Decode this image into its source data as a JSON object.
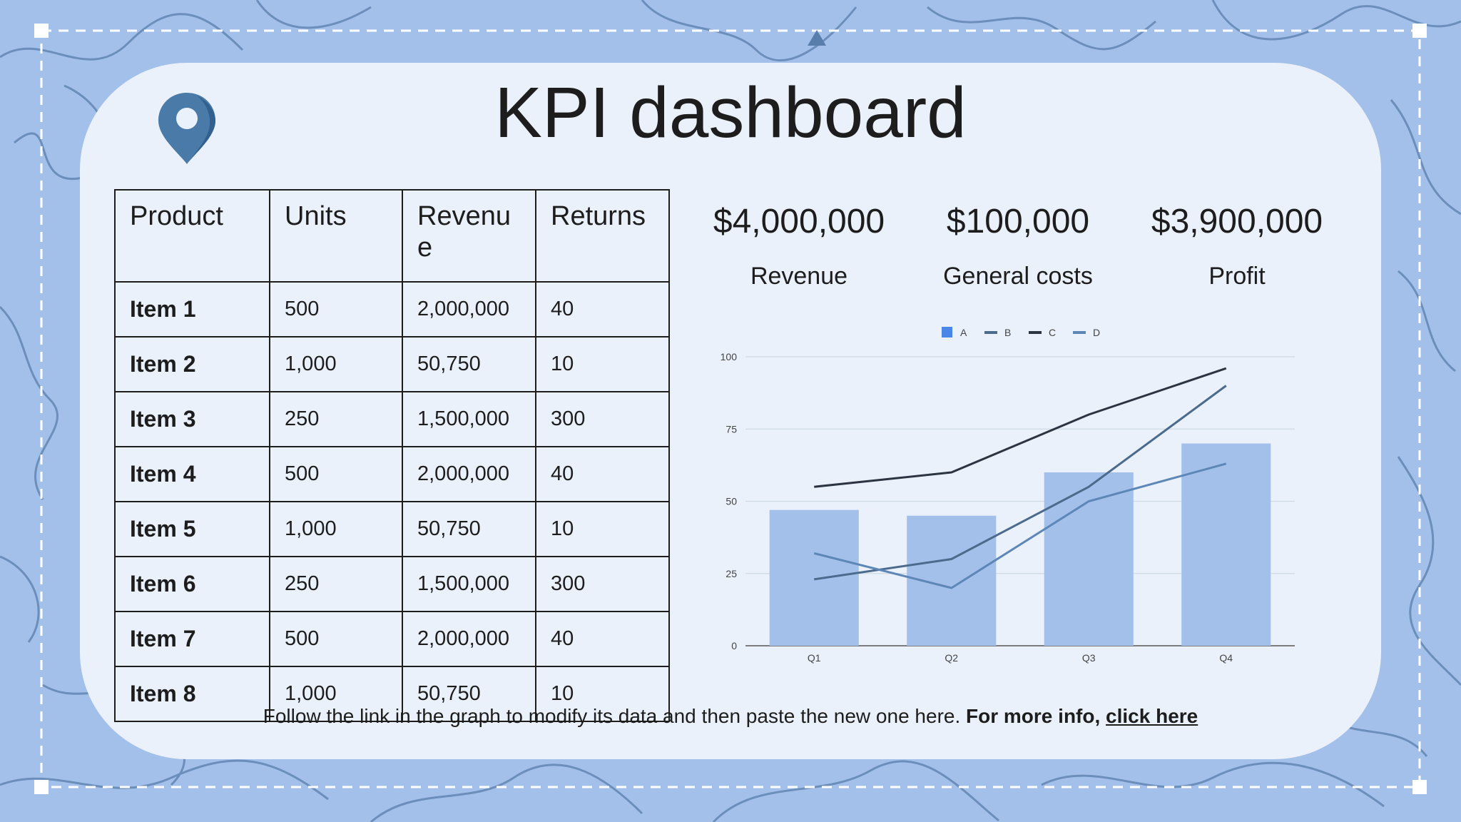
{
  "title": "KPI dashboard",
  "table": {
    "headers": [
      "Product",
      "Units",
      "Revenu e",
      "Returns"
    ],
    "rows": [
      [
        "Item 1",
        "500",
        "2,000,000",
        "40"
      ],
      [
        "Item 2",
        "1,000",
        "50,750",
        "10"
      ],
      [
        "Item 3",
        "250",
        "1,500,000",
        "300"
      ],
      [
        "Item 4",
        "500",
        "2,000,000",
        "40"
      ],
      [
        "Item 5",
        "1,000",
        "50,750",
        "10"
      ],
      [
        "Item 6",
        "250",
        "1,500,000",
        "300"
      ],
      [
        "Item 7",
        "500",
        "2,000,000",
        "40"
      ],
      [
        "Item 8",
        "1,000",
        "50,750",
        "10"
      ]
    ]
  },
  "kpis": [
    {
      "value": "$4,000,000",
      "label": "Revenue"
    },
    {
      "value": "$100,000",
      "label": "General costs"
    },
    {
      "value": "$3,900,000",
      "label": "Profit"
    }
  ],
  "footer": {
    "text": "Follow the link in the graph to modify its data and then paste the new one here.",
    "bold": "For more info,",
    "link": "click here"
  },
  "colors": {
    "background": "#a3c0ea",
    "card": "#eaf1fb",
    "pin": "#4a7aa8",
    "bar": "#a3c0ea"
  },
  "icons": {
    "location": "map-pin-icon"
  },
  "chart_data": {
    "type": "bar",
    "categories": [
      "Q1",
      "Q2",
      "Q3",
      "Q4"
    ],
    "ylim": [
      0,
      100
    ],
    "yticks": [
      0,
      25,
      50,
      75,
      100
    ],
    "legend_position": "top",
    "grid": true,
    "series": [
      {
        "name": "A",
        "kind": "bar",
        "color": "#a3c0ea",
        "legend_color": "#4a86e8",
        "values": [
          47,
          45,
          60,
          70
        ]
      },
      {
        "name": "B",
        "kind": "line",
        "color": "#4b6a8c",
        "values": [
          23,
          30,
          55,
          90
        ]
      },
      {
        "name": "C",
        "kind": "line",
        "color": "#2b3440",
        "values": [
          55,
          60,
          80,
          96
        ]
      },
      {
        "name": "D",
        "kind": "line",
        "color": "#5d87b7",
        "values": [
          32,
          20,
          50,
          63
        ]
      }
    ]
  }
}
